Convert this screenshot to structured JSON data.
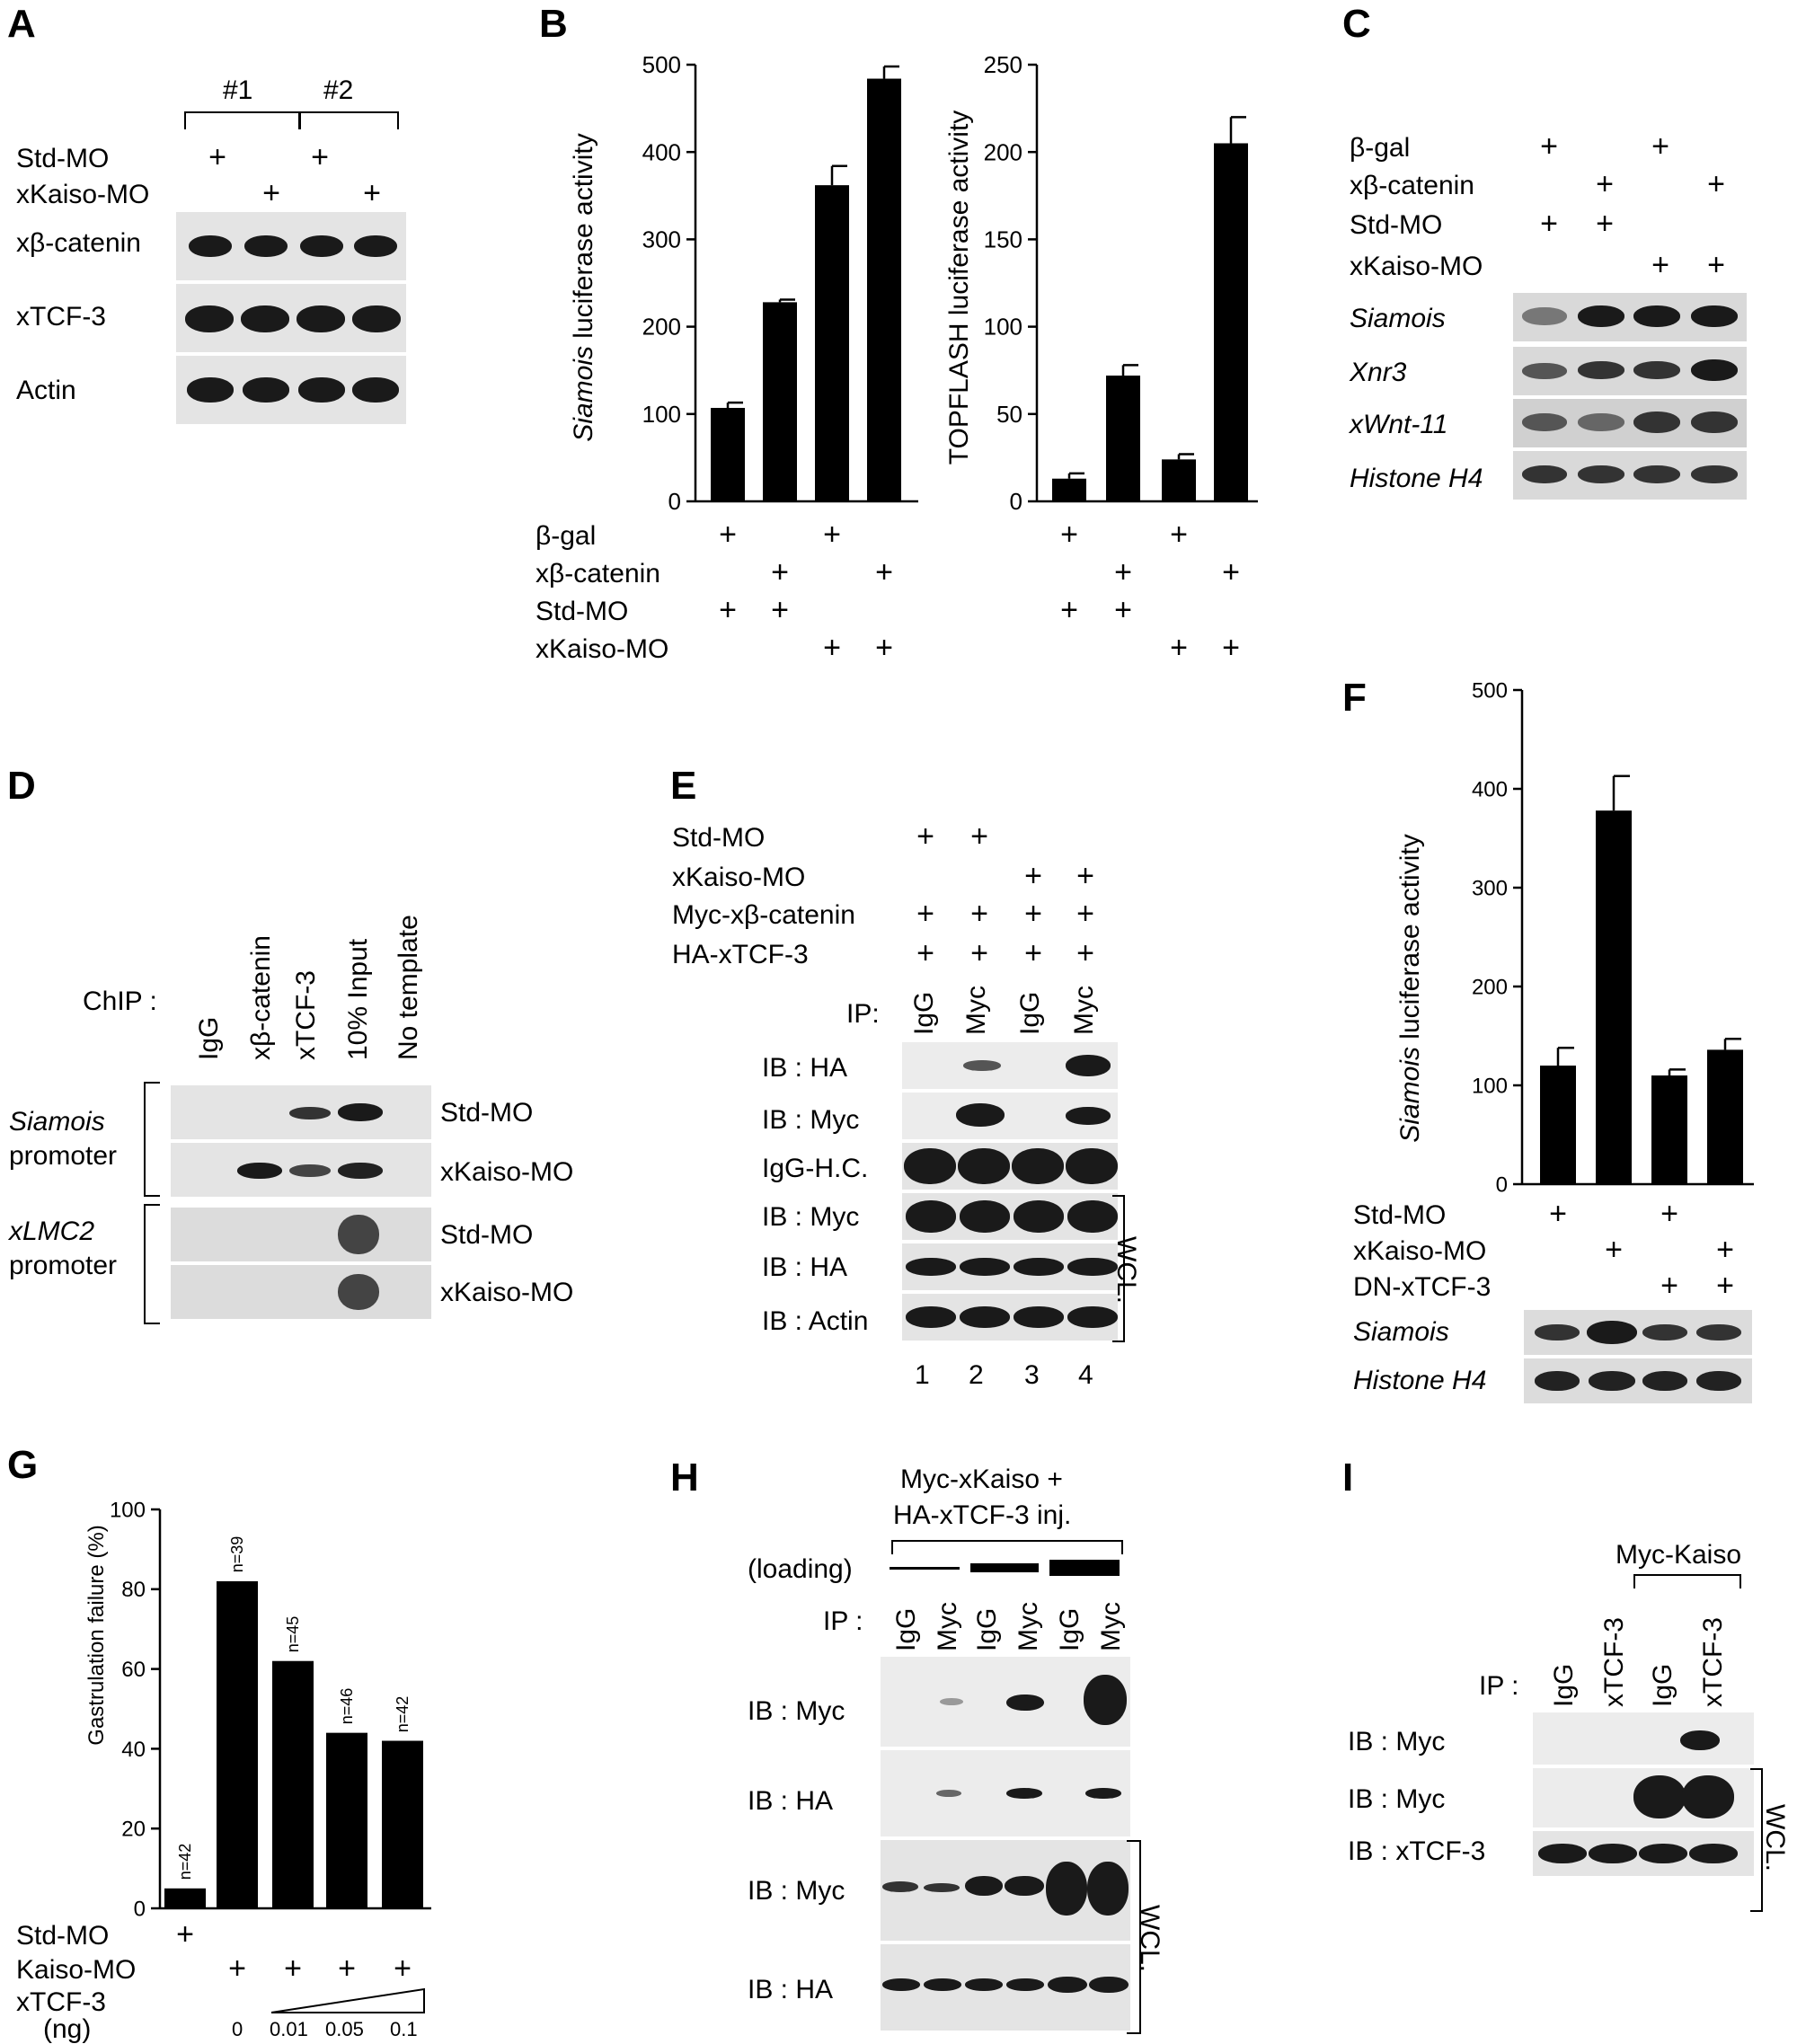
{
  "panels": {
    "A": {
      "label": "A",
      "groups": [
        "#1",
        "#2"
      ],
      "rows": [
        {
          "name": "Std-MO",
          "lanes": [
            true,
            false,
            true,
            false
          ]
        },
        {
          "name": "xKaiso-MO",
          "lanes": [
            false,
            true,
            false,
            true
          ]
        }
      ],
      "blots": [
        "xβ-catenin",
        "xTCF-3",
        "Actin"
      ]
    },
    "B": {
      "label": "B",
      "rows": [
        {
          "name": "β-gal",
          "lanes": [
            true,
            false,
            true,
            false
          ]
        },
        {
          "name": "xβ-catenin",
          "lanes": [
            false,
            true,
            false,
            true
          ]
        },
        {
          "name": "Std-MO",
          "lanes": [
            true,
            true,
            false,
            false
          ]
        },
        {
          "name": "xKaiso-MO",
          "lanes": [
            false,
            false,
            true,
            true
          ]
        }
      ]
    },
    "C": {
      "label": "C",
      "rows": [
        {
          "name": "β-gal",
          "lanes": [
            true,
            false,
            true,
            false
          ]
        },
        {
          "name": "xβ-catenin",
          "lanes": [
            false,
            true,
            false,
            true
          ]
        },
        {
          "name": "Std-MO",
          "lanes": [
            true,
            true,
            false,
            false
          ]
        },
        {
          "name": "xKaiso-MO",
          "lanes": [
            false,
            false,
            true,
            true
          ]
        }
      ],
      "blots": [
        "Siamois",
        "Xnr3",
        "xWnt-11",
        "Histone H4"
      ]
    },
    "D": {
      "label": "D",
      "chip_label": "ChIP :",
      "columns": [
        "IgG",
        "xβ-catenin",
        "xTCF-3",
        "10% Input",
        "No template"
      ],
      "promoter1_gene": "Siamois",
      "promoter2_gene": "xLMC2",
      "promoter_word": "promoter",
      "conditions": [
        "Std-MO",
        "xKaiso-MO",
        "Std-MO",
        "xKaiso-MO"
      ]
    },
    "E": {
      "label": "E",
      "rows": [
        {
          "name": "Std-MO",
          "lanes": [
            true,
            true,
            false,
            false
          ]
        },
        {
          "name": "xKaiso-MO",
          "lanes": [
            false,
            false,
            true,
            true
          ]
        },
        {
          "name": "Myc-xβ-catenin",
          "lanes": [
            true,
            true,
            true,
            true
          ]
        },
        {
          "name": "HA-xTCF-3",
          "lanes": [
            true,
            true,
            true,
            true
          ]
        }
      ],
      "ip_label": "IP:",
      "ip_lanes": [
        "IgG",
        "Myc",
        "IgG",
        "Myc"
      ],
      "blots": [
        "IB : HA",
        "IB : Myc",
        "IgG-H.C.",
        "IB : Myc",
        "IB : HA",
        "IB : Actin"
      ],
      "wcl": "WCL.",
      "lane_numbers": [
        "1",
        "2",
        "3",
        "4"
      ]
    },
    "F": {
      "label": "F",
      "rows": [
        {
          "name": "Std-MO",
          "lanes": [
            true,
            false,
            true,
            false
          ]
        },
        {
          "name": "xKaiso-MO",
          "lanes": [
            false,
            true,
            false,
            true
          ]
        },
        {
          "name": "DN-xTCF-3",
          "lanes": [
            false,
            false,
            true,
            true
          ]
        }
      ],
      "blots": [
        "Siamois",
        "Histone H4"
      ]
    },
    "G": {
      "label": "G",
      "rows": [
        {
          "name": "Std-MO",
          "lanes": [
            true,
            false,
            false,
            false,
            false
          ]
        },
        {
          "name": "Kaiso-MO",
          "lanes": [
            false,
            true,
            true,
            true,
            true
          ]
        }
      ],
      "xtcf_label": "xTCF-3",
      "ng_label": "(ng)",
      "doses": [
        "0",
        "0.01",
        "0.05",
        "0.1"
      ],
      "n_labels": [
        "n=42",
        "n=39",
        "n=45",
        "n=46",
        "n=42"
      ]
    },
    "H": {
      "label": "H",
      "header1": "Myc-xKaiso +",
      "header2": "HA-xTCF-3 inj.",
      "loading_label": "(loading)",
      "ip_label": "IP :",
      "ip_lanes": [
        "IgG",
        "Myc",
        "IgG",
        "Myc",
        "IgG",
        "Myc"
      ],
      "blots": [
        "IB : Myc",
        "IB : HA",
        "IB : Myc",
        "IB : HA"
      ],
      "wcl": "WCL."
    },
    "I": {
      "label": "I",
      "header": "Myc-Kaiso",
      "ip_label": "IP :",
      "ip_lanes": [
        "IgG",
        "xTCF-3",
        "IgG",
        "xTCF-3"
      ],
      "blots": [
        "IB : Myc",
        "IB : Myc",
        "IB : xTCF-3"
      ],
      "wcl": "WCL."
    }
  },
  "chart_data": [
    {
      "id": "B1",
      "type": "bar",
      "ylabel_italic": "Siamois",
      "ylabel": "luciferase activity",
      "ylim": [
        0,
        500
      ],
      "ticks": [
        0,
        100,
        200,
        300,
        400,
        500
      ],
      "values": [
        107,
        228,
        362,
        484
      ],
      "errors": [
        6,
        3,
        22,
        14
      ]
    },
    {
      "id": "B2",
      "type": "bar",
      "ylabel": "TOPFLASH luciferase activity",
      "ylim": [
        0,
        250
      ],
      "ticks": [
        0,
        50,
        100,
        150,
        200,
        250
      ],
      "values": [
        13,
        72,
        24,
        205
      ],
      "errors": [
        3,
        6,
        3,
        15
      ]
    },
    {
      "id": "F",
      "type": "bar",
      "ylabel_italic": "Siamois",
      "ylabel": "luciferase activity",
      "ylim": [
        0,
        500
      ],
      "ticks": [
        0,
        100,
        200,
        300,
        400,
        500
      ],
      "values": [
        120,
        378,
        110,
        136
      ],
      "errors": [
        18,
        35,
        6,
        11
      ]
    },
    {
      "id": "G",
      "type": "bar",
      "ylabel": "Gastrulation failure (%)",
      "ylim": [
        0,
        100
      ],
      "ticks": [
        0,
        20,
        40,
        60,
        80,
        100
      ],
      "values": [
        5,
        82,
        62,
        44,
        42
      ],
      "errors": []
    }
  ]
}
